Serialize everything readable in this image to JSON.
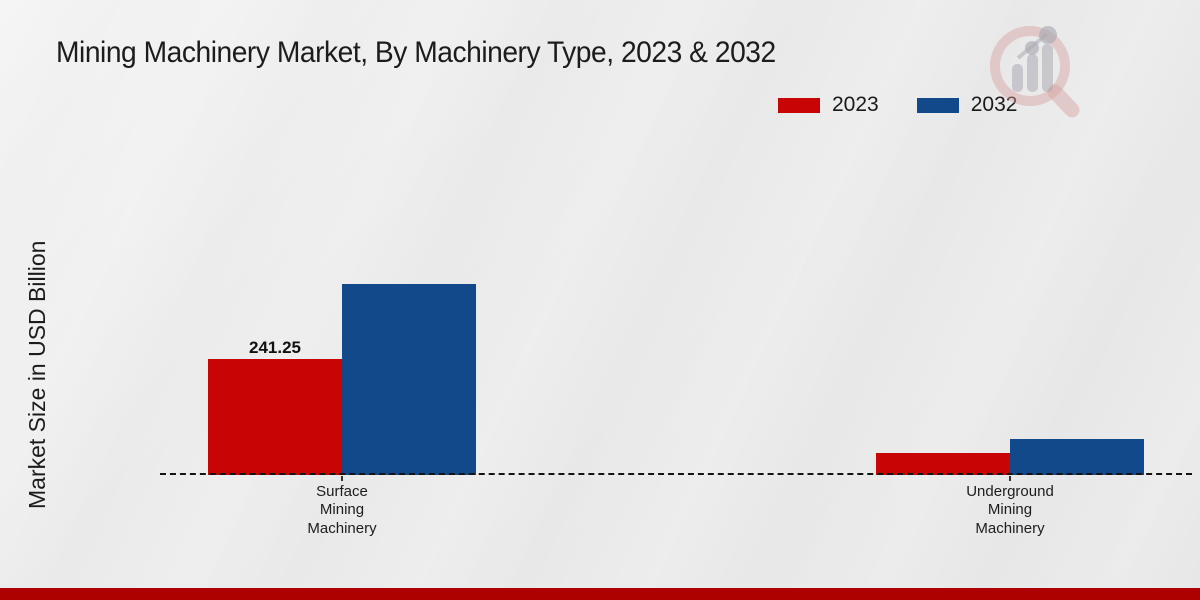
{
  "title": "Mining Machinery Market, By Machinery Type, 2023 & 2032",
  "y_axis": {
    "label": "Market Size in USD Billion"
  },
  "legend": {
    "items": [
      {
        "label": "2023",
        "color": "#c90404"
      },
      {
        "label": "2032",
        "color": "#11498b"
      }
    ]
  },
  "colors": {
    "bar_2023": "#c90404",
    "bar_2032": "#11498b",
    "bottom_strip": "#ad0100",
    "baseline": "#141414"
  },
  "watermark_icon": "magnifier-bar-chart-logo",
  "chart_data": {
    "type": "bar",
    "categories": [
      "Surface Mining Machinery",
      "Underground Mining Machinery"
    ],
    "series": [
      {
        "name": "2023",
        "color": "#c90404",
        "values": [
          241.25,
          45
        ]
      },
      {
        "name": "2032",
        "color": "#11498b",
        "values": [
          400,
          73
        ]
      }
    ],
    "annotations": [
      {
        "category_index": 0,
        "series_index": 0,
        "text": "241.25"
      }
    ],
    "title": "Mining Machinery Market, By Machinery Type, 2023 & 2032",
    "xlabel": "",
    "ylabel": "Market Size in USD Billion",
    "ylim": [
      0,
      480
    ],
    "grid": false,
    "legend_position": "top-right",
    "baseline_style": "dashed"
  }
}
